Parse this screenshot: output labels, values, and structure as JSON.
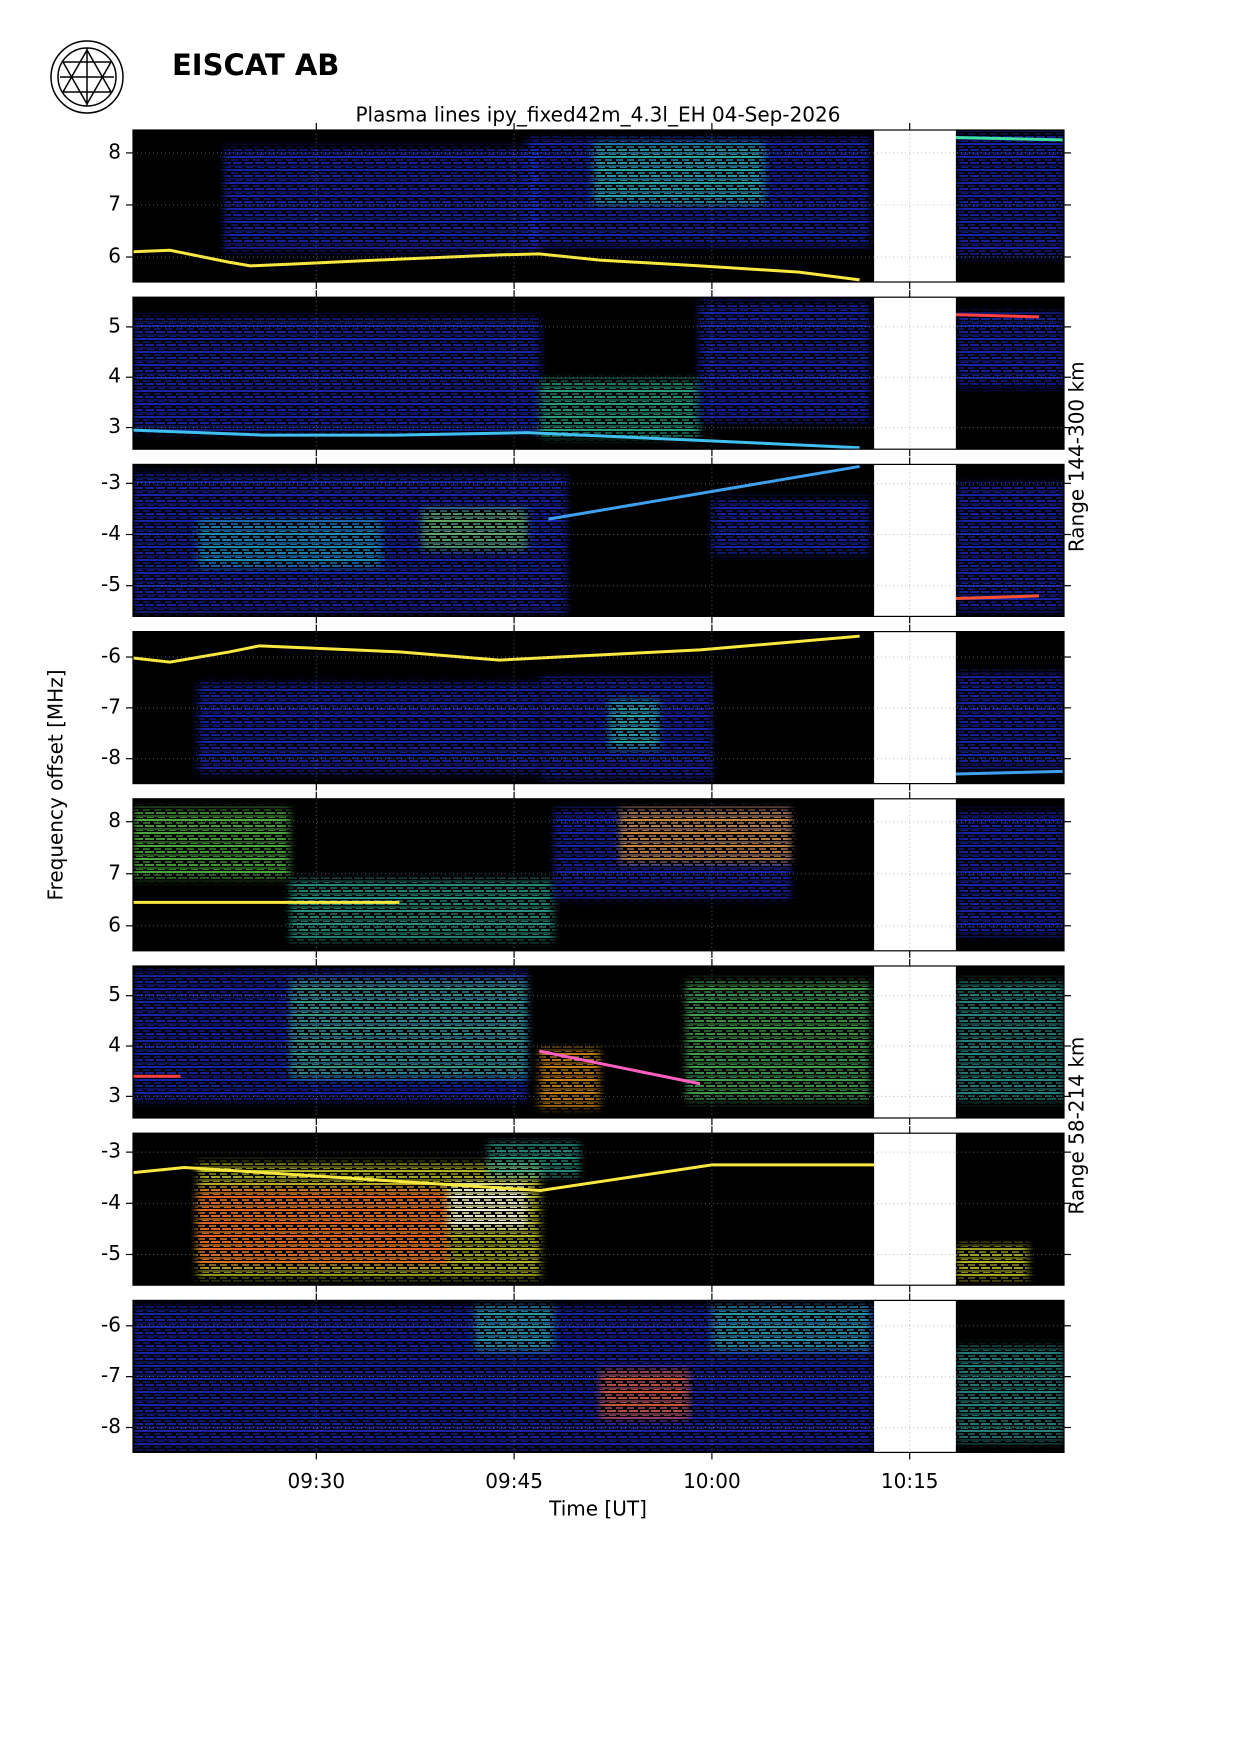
{
  "header": {
    "title": "EISCAT AB"
  },
  "chart_data": {
    "type": "spectrogram",
    "title": "Plasma lines   ipy_fixed42m_4.3l_EH  04-Sep-2026",
    "x_label": "Time [UT]",
    "y_label": "Frequency offset [MHz]",
    "range_labels": [
      "Range 144-300 km",
      "Range 58-214 km"
    ],
    "xlim": [
      556.1,
      626.7
    ],
    "xticks": [
      {
        "value": 570,
        "label": "09:30"
      },
      {
        "value": 585,
        "label": "09:45"
      },
      {
        "value": 600,
        "label": "10:00"
      },
      {
        "value": 615,
        "label": "10:15"
      }
    ],
    "gap": [
      612.3,
      618.5
    ],
    "grid": true,
    "panels": [
      {
        "ylim": [
          5.52,
          8.44
        ],
        "yticks": [
          6,
          7,
          8
        ],
        "regions": [
          {
            "x": [
              563,
              587
            ],
            "y": [
              6.1,
              8.1
            ],
            "color": "#1a2fd0"
          },
          {
            "x": [
              586,
              612
            ],
            "y": [
              6.2,
              8.3
            ],
            "color": "#1a2fd0"
          },
          {
            "x": [
              591,
              604
            ],
            "y": [
              7.0,
              8.2
            ],
            "color": "#30c0a0"
          },
          {
            "x": [
              618.5,
              626.7
            ],
            "y": [
              6.0,
              8.4
            ],
            "color": "#1a2fd0"
          }
        ],
        "traces": [
          {
            "x": [
              556.1,
              558.9,
              563.4,
              565,
              568.7,
              576.3,
              583.9,
              586.9,
              591.5,
              599.1,
              606.6,
              611.2
            ],
            "values": [
              6.1,
              6.13,
              5.9,
              5.83,
              5.87,
              5.96,
              6.04,
              6.06,
              5.94,
              5.83,
              5.71,
              5.56
            ],
            "color": "#f8e840"
          },
          {
            "x": [
              617.5,
              626.6
            ],
            "values": [
              8.3,
              8.25
            ],
            "color": "#40e0a0"
          }
        ]
      },
      {
        "ylim": [
          2.57,
          5.59
        ],
        "yticks": [
          3,
          4,
          5
        ],
        "regions": [
          {
            "x": [
              556.1,
              587
            ],
            "y": [
              2.9,
              5.2
            ],
            "color": "#1a2fd0"
          },
          {
            "x": [
              586.9,
              599.1
            ],
            "y": [
              2.8,
              3.95
            ],
            "color": "#30c0a0"
          },
          {
            "x": [
              599,
              612
            ],
            "y": [
              3.1,
              5.5
            ],
            "color": "#1a2fd0"
          },
          {
            "x": [
              618.5,
              626.7
            ],
            "y": [
              3.8,
              5.3
            ],
            "color": "#1a2fd0"
          }
        ],
        "traces": [
          {
            "x": [
              556.1,
              566,
              576,
              586,
              611.2
            ],
            "values": [
              2.95,
              2.85,
              2.85,
              2.9,
              2.6
            ],
            "color": "#40c0f0"
          },
          {
            "x": [
              617.5,
              624.8
            ],
            "values": [
              5.25,
              5.2
            ],
            "color": "#ff4040"
          }
        ]
      },
      {
        "ylim": [
          -5.6,
          -2.63
        ],
        "yticks": [
          -3,
          -4,
          -5
        ],
        "regions": [
          {
            "x": [
              556.1,
              589
            ],
            "y": [
              -5.55,
              -2.8
            ],
            "color": "#1a2fd0"
          },
          {
            "x": [
              561,
              575
            ],
            "y": [
              -4.65,
              -3.7
            ],
            "color": "#20a0b0"
          },
          {
            "x": [
              578,
              586
            ],
            "y": [
              -4.3,
              -3.5
            ],
            "color": "#70c850"
          },
          {
            "x": [
              600,
              612
            ],
            "y": [
              -4.4,
              -3.3
            ],
            "color": "#1a2fd0"
          },
          {
            "x": [
              618.5,
              626.7
            ],
            "y": [
              -5.5,
              -3.0
            ],
            "color": "#1a2fd0"
          }
        ],
        "traces": [
          {
            "x": [
              587.6,
              611.2
            ],
            "values": [
              -3.7,
              -2.67
            ],
            "color": "#40a0f0"
          },
          {
            "x": [
              618.5,
              624.8
            ],
            "values": [
              -5.25,
              -5.2
            ],
            "color": "#ff5030"
          }
        ]
      },
      {
        "ylim": [
          -8.49,
          -5.5
        ],
        "yticks": [
          -6,
          -7,
          -8
        ],
        "regions": [
          {
            "x": [
              561,
              587
            ],
            "y": [
              -8.3,
              -6.5
            ],
            "color": "#1a2fd0"
          },
          {
            "x": [
              587,
              600
            ],
            "y": [
              -8.4,
              -6.4
            ],
            "color": "#1a2fd0"
          },
          {
            "x": [
              592.2,
              596
            ],
            "y": [
              -7.82,
              -6.84
            ],
            "color": "#30c0a0"
          },
          {
            "x": [
              618.5,
              626.7
            ],
            "y": [
              -8.2,
              -6.3
            ],
            "color": "#1a2fd0"
          }
        ],
        "traces": [
          {
            "x": [
              556.1,
              558.9,
              563.4,
              565.7,
              576.3,
              583.9,
              588.4,
              599.1,
              611.2
            ],
            "values": [
              -6.02,
              -6.1,
              -5.9,
              -5.78,
              -5.9,
              -6.06,
              -6,
              -5.86,
              -5.59
            ],
            "color": "#f8e840"
          },
          {
            "x": [
              618.5,
              626.6
            ],
            "values": [
              -8.3,
              -8.25
            ],
            "color": "#40a0f0"
          }
        ]
      },
      {
        "ylim": [
          5.52,
          8.44
        ],
        "yticks": [
          6,
          7,
          8
        ],
        "regions": [
          {
            "x": [
              556.1,
              568
            ],
            "y": [
              6.9,
              8.25
            ],
            "color": "#60d050"
          },
          {
            "x": [
              568,
              588
            ],
            "y": [
              5.7,
              6.9
            ],
            "color": "#30b0a0"
          },
          {
            "x": [
              588,
              606
            ],
            "y": [
              6.5,
              8.25
            ],
            "color": "#1a2fd0"
          },
          {
            "x": [
              593,
              606
            ],
            "y": [
              7.2,
              8.25
            ],
            "color": "#f0a020"
          },
          {
            "x": [
              618.5,
              626.7
            ],
            "y": [
              5.8,
              8.2
            ],
            "color": "#1a2fd0"
          }
        ],
        "traces": [
          {
            "x": [
              556.1,
              576.3
            ],
            "values": [
              6.45,
              6.45
            ],
            "color": "#f8e840"
          }
        ]
      },
      {
        "ylim": [
          2.57,
          5.59
        ],
        "yticks": [
          3,
          4,
          5
        ],
        "regions": [
          {
            "x": [
              556.1,
              586
            ],
            "y": [
              2.9,
              5.5
            ],
            "color": "#1a2fd0"
          },
          {
            "x": [
              568,
              586
            ],
            "y": [
              3.35,
              5.33
            ],
            "color": "#40b080"
          },
          {
            "x": [
              586.9,
              591.5
            ],
            "y": [
              2.76,
              3.96
            ],
            "color": "#f0a020"
          },
          {
            "x": [
              598,
              612
            ],
            "y": [
              2.9,
              5.3
            ],
            "color": "#50c060"
          },
          {
            "x": [
              618.5,
              626.7
            ],
            "y": [
              2.9,
              5.3
            ],
            "color": "#30a0a0"
          }
        ],
        "traces": [
          {
            "x": [
              556.1,
              559.7
            ],
            "values": [
              3.4,
              3.4
            ],
            "color": "#ff4040"
          },
          {
            "x": [
              586.9,
              599.1
            ],
            "values": [
              3.9,
              3.25
            ],
            "color": "#ff60c0"
          }
        ]
      },
      {
        "ylim": [
          -5.6,
          -2.63
        ],
        "yticks": [
          -3,
          -4,
          -5
        ],
        "regions": [
          {
            "x": [
              561,
              587
            ],
            "y": [
              -5.47,
              -3.2
            ],
            "color": "#e0e030"
          },
          {
            "x": [
              561,
              580
            ],
            "y": [
              -5.2,
              -3.7
            ],
            "color": "#f05020"
          },
          {
            "x": [
              580,
              586
            ],
            "y": [
              -4.5,
              -3.6
            ],
            "color": "#ffffff"
          },
          {
            "x": [
              583,
              590
            ],
            "y": [
              -3.5,
              -2.8
            ],
            "color": "#30b0a0"
          },
          {
            "x": [
              618.5,
              624
            ],
            "y": [
              -5.5,
              -4.8
            ],
            "color": "#e0e030"
          }
        ],
        "traces": [
          {
            "x": [
              556.1,
              560,
              587,
              600,
              612.3
            ],
            "values": [
              -3.4,
              -3.3,
              -3.75,
              -3.25,
              -3.25
            ],
            "color": "#f8e840"
          }
        ]
      },
      {
        "ylim": [
          -8.49,
          -5.5
        ],
        "yticks": [
          -6,
          -7,
          -8
        ],
        "regions": [
          {
            "x": [
              556.1,
              612.3
            ],
            "y": [
              -8.45,
              -5.6
            ],
            "color": "#1a2fd0"
          },
          {
            "x": [
              582,
              588
            ],
            "y": [
              -6.5,
              -5.6
            ],
            "color": "#30b0a0"
          },
          {
            "x": [
              591.5,
              598.3
            ],
            "y": [
              -7.84,
              -6.86
            ],
            "color": "#f06020"
          },
          {
            "x": [
              600,
              612
            ],
            "y": [
              -6.5,
              -5.6
            ],
            "color": "#30b0a0"
          },
          {
            "x": [
              618.5,
              626.7
            ],
            "y": [
              -8.3,
              -6.4
            ],
            "color": "#30a0a0"
          }
        ],
        "traces": []
      }
    ]
  }
}
